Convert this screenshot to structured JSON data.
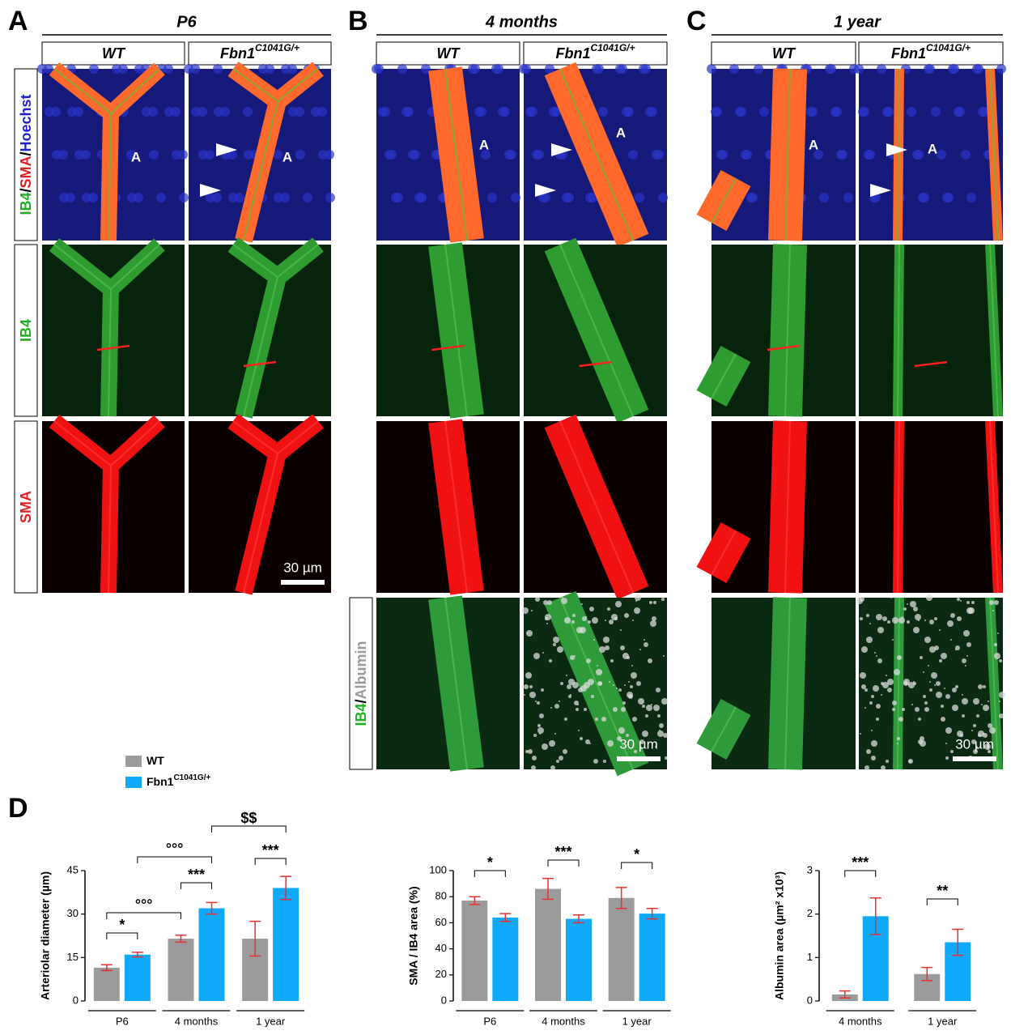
{
  "figure": {
    "panels": [
      {
        "letter": "A",
        "title": "P6",
        "columns": [
          {
            "text": "WT"
          },
          {
            "text": "Fbn1",
            "sup": "C1041G/+"
          }
        ],
        "row_labels": [
          [
            {
              "text": "IB4",
              "color": "#1fae1f"
            },
            {
              "text": "/",
              "color": "#000000"
            },
            {
              "text": "SMA",
              "color": "#e02020"
            },
            {
              "text": "/",
              "color": "#000000"
            },
            {
              "text": "Hoechst",
              "color": "#2020d0"
            }
          ],
          [
            {
              "text": "IB4",
              "color": "#1fae1f"
            }
          ],
          [
            {
              "text": "SMA",
              "color": "#e02020"
            }
          ]
        ],
        "region_label": "A",
        "scale_bar": "30 µm"
      },
      {
        "letter": "B",
        "title": "4 months",
        "columns": [
          {
            "text": "WT"
          },
          {
            "text": "Fbn1",
            "sup": "C1041G/+"
          }
        ],
        "last_row_label": [
          {
            "text": "IB4",
            "color": "#1fae1f"
          },
          {
            "text": "/",
            "color": "#000000"
          },
          {
            "text": "Albumin",
            "color": "#9a9a9a"
          }
        ],
        "region_label": "A",
        "scale_bar": "30 µm"
      },
      {
        "letter": "C",
        "title": "1 year",
        "columns": [
          {
            "text": "WT"
          },
          {
            "text": "Fbn1",
            "sup": "C1041G/+"
          }
        ],
        "region_label": "A",
        "scale_bar": "30 µm"
      }
    ],
    "chart_panel_letter": "D"
  },
  "chart_data": [
    {
      "type": "bar",
      "ylabel": "Arteriolar diameter (µm)",
      "categories": [
        "P6",
        "4 months",
        "1 year"
      ],
      "series": [
        {
          "name": "WT",
          "color": "#9b9b9b",
          "values": [
            11.5,
            21.5,
            21.5
          ],
          "errors": [
            1,
            1.2,
            6
          ]
        },
        {
          "name": "Fbn1",
          "superscript": "C1041G/+",
          "color": "#10a8f8",
          "values": [
            16,
            32,
            39
          ],
          "errors": [
            0.8,
            2,
            4
          ]
        }
      ],
      "ylim": [
        0,
        45
      ],
      "yticks": [
        0,
        15,
        30,
        45
      ],
      "annotations": [
        "*",
        "°°°",
        "***",
        "°°°",
        "***",
        "$$"
      ]
    },
    {
      "type": "bar",
      "ylabel": "SMA / IB4 area (%)",
      "categories": [
        "P6",
        "4 months",
        "1 year"
      ],
      "series": [
        {
          "name": "WT",
          "color": "#9b9b9b",
          "values": [
            77,
            86,
            79
          ],
          "errors": [
            3,
            8,
            8
          ]
        },
        {
          "name": "Fbn1",
          "superscript": "C1041G/+",
          "color": "#10a8f8",
          "values": [
            64,
            63,
            67
          ],
          "errors": [
            3,
            3,
            4
          ]
        }
      ],
      "ylim": [
        0,
        100
      ],
      "yticks": [
        0,
        20,
        40,
        60,
        80,
        100
      ],
      "annotations": [
        "*",
        "***",
        "*"
      ]
    },
    {
      "type": "bar",
      "ylabel": "Albumin area (µm² x10³)",
      "categories": [
        "4 months",
        "1 year"
      ],
      "series": [
        {
          "name": "WT",
          "color": "#9b9b9b",
          "values": [
            0.15,
            0.62
          ],
          "errors": [
            0.08,
            0.15
          ]
        },
        {
          "name": "Fbn1",
          "superscript": "C1041G/+",
          "color": "#10a8f8",
          "values": [
            1.95,
            1.35
          ],
          "errors": [
            0.42,
            0.3
          ]
        }
      ],
      "ylim": [
        0,
        3
      ],
      "yticks": [
        0,
        1,
        2,
        3
      ],
      "annotations": [
        "***",
        "**"
      ]
    }
  ]
}
